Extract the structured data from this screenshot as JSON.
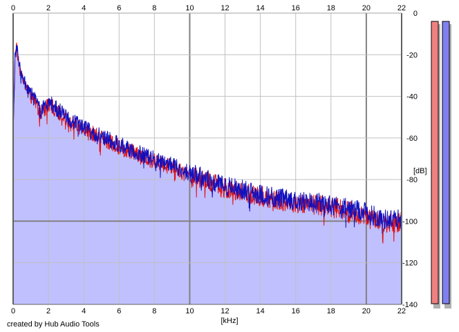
{
  "chart_data": {
    "type": "area",
    "x_unit_label": "[kHz]",
    "y_unit_label": "[dB]",
    "xlim": [
      0,
      22
    ],
    "ylim": [
      -140,
      0
    ],
    "x_ticks": [
      "0",
      "2",
      "4",
      "6",
      "8",
      "10",
      "12",
      "14",
      "16",
      "18",
      "20",
      "22"
    ],
    "y_ticks": [
      "0",
      "-20",
      "-40",
      "-60",
      "-80",
      "-100",
      "-120",
      "-140"
    ],
    "grid": true,
    "series": [
      {
        "color": "#e01010",
        "fill": "#c0c0ff",
        "envelope": [
          [
            0,
            -60
          ],
          [
            0.1,
            -20
          ],
          [
            0.2,
            -17
          ],
          [
            0.4,
            -28
          ],
          [
            0.8,
            -37
          ],
          [
            1.2,
            -42
          ],
          [
            1.5,
            -48
          ],
          [
            2,
            -44
          ],
          [
            2.5,
            -47
          ],
          [
            3,
            -51
          ],
          [
            3.5,
            -53
          ],
          [
            4,
            -56
          ],
          [
            5,
            -60
          ],
          [
            6,
            -64
          ],
          [
            7,
            -68
          ],
          [
            8,
            -71
          ],
          [
            9,
            -74
          ],
          [
            10,
            -78
          ],
          [
            11,
            -81
          ],
          [
            12,
            -84
          ],
          [
            13,
            -86
          ],
          [
            14,
            -88
          ],
          [
            15,
            -90
          ],
          [
            16,
            -91
          ],
          [
            17,
            -92
          ],
          [
            18,
            -93
          ],
          [
            19,
            -95
          ],
          [
            20,
            -98
          ],
          [
            21,
            -101
          ],
          [
            22,
            -101
          ]
        ]
      },
      {
        "color": "#1010c0",
        "envelope": [
          [
            0,
            -60
          ],
          [
            0.1,
            -20
          ],
          [
            0.2,
            -16
          ],
          [
            0.4,
            -27
          ],
          [
            0.8,
            -36
          ],
          [
            1.2,
            -41
          ],
          [
            1.5,
            -47
          ],
          [
            2,
            -43
          ],
          [
            2.5,
            -46
          ],
          [
            3,
            -50
          ],
          [
            3.5,
            -52
          ],
          [
            4,
            -55
          ],
          [
            5,
            -59
          ],
          [
            6,
            -63
          ],
          [
            7,
            -67
          ],
          [
            8,
            -70
          ],
          [
            9,
            -73
          ],
          [
            10,
            -77
          ],
          [
            11,
            -80
          ],
          [
            12,
            -83
          ],
          [
            13,
            -85
          ],
          [
            14,
            -87
          ],
          [
            15,
            -89
          ],
          [
            16,
            -90
          ],
          [
            17,
            -91
          ],
          [
            18,
            -92
          ],
          [
            19,
            -94
          ],
          [
            20,
            -96
          ],
          [
            21,
            -99
          ],
          [
            22,
            -99
          ]
        ]
      }
    ],
    "level_meters": [
      {
        "channel": "left",
        "color": "#f08080"
      },
      {
        "channel": "right",
        "color": "#8080f0"
      }
    ]
  },
  "credit": "created by Hub Audio Tools"
}
